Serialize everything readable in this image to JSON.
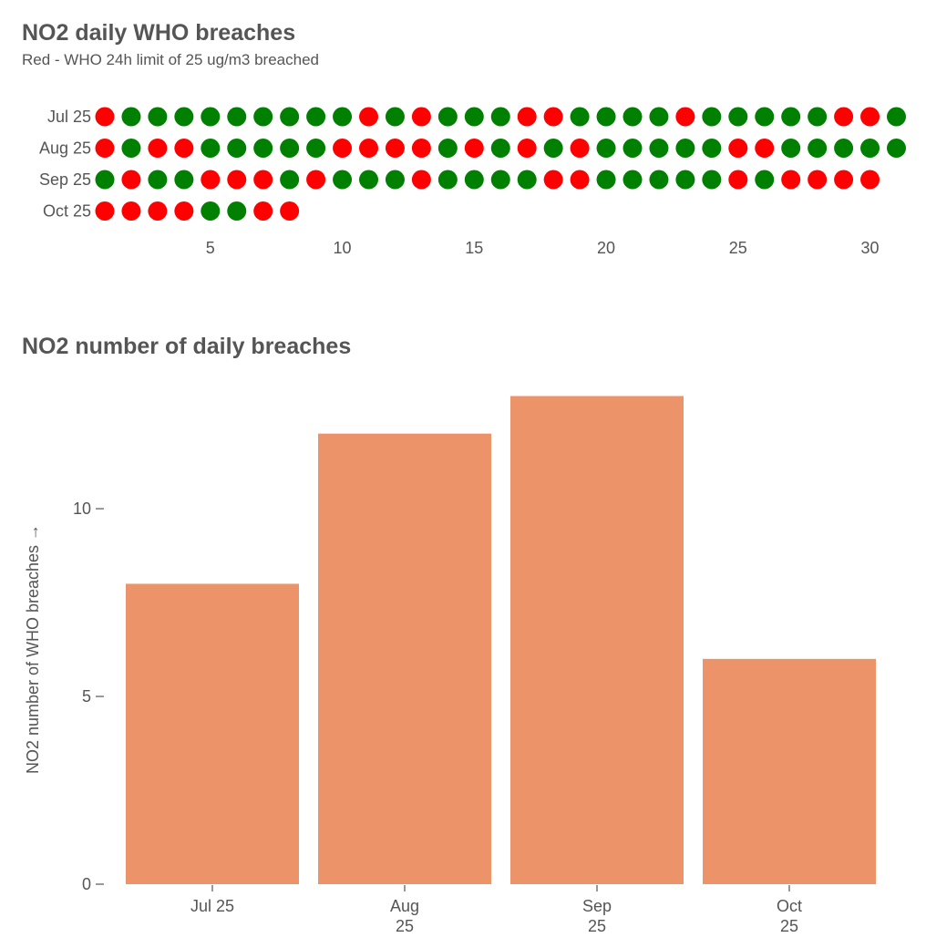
{
  "chart_data": [
    {
      "type": "scatter",
      "title": "NO2 daily WHO breaches",
      "subtitle": "Red - WHO 24h limit of 25 ug/m3 breached",
      "colors": {
        "breach": "#ff0000",
        "ok": "#008000"
      },
      "x_ticks": [
        5,
        10,
        15,
        20,
        25,
        30
      ],
      "x_range": [
        1,
        31
      ],
      "rows": [
        {
          "label": "Jul 25",
          "days": [
            1,
            0,
            0,
            0,
            0,
            0,
            0,
            0,
            0,
            0,
            1,
            0,
            1,
            0,
            0,
            0,
            1,
            1,
            0,
            0,
            0,
            0,
            1,
            0,
            0,
            0,
            0,
            0,
            1,
            1,
            0
          ]
        },
        {
          "label": "Aug 25",
          "days": [
            1,
            0,
            1,
            1,
            0,
            0,
            0,
            0,
            0,
            1,
            1,
            1,
            1,
            0,
            1,
            0,
            1,
            0,
            1,
            0,
            0,
            0,
            0,
            0,
            1,
            1,
            0,
            0,
            0,
            0,
            0
          ]
        },
        {
          "label": "Sep 25",
          "days": [
            0,
            1,
            0,
            0,
            1,
            1,
            1,
            0,
            1,
            0,
            0,
            0,
            1,
            0,
            0,
            0,
            0,
            1,
            1,
            0,
            0,
            0,
            0,
            0,
            1,
            0,
            1,
            1,
            1,
            1
          ]
        },
        {
          "label": "Oct 25",
          "days": [
            1,
            1,
            1,
            1,
            0,
            0,
            1,
            1
          ]
        }
      ]
    },
    {
      "type": "bar",
      "title": "NO2 number of daily breaches",
      "ylabel": "NO2 number of WHO breaches →",
      "categories": [
        [
          "Jul 25"
        ],
        [
          "Aug",
          "25"
        ],
        [
          "Sep",
          "25"
        ],
        [
          "Oct",
          "25"
        ]
      ],
      "values": [
        8,
        12,
        13,
        6
      ],
      "y_ticks": [
        0,
        5,
        10
      ],
      "ylim": [
        0,
        13.4
      ],
      "bar_color": "#ec9369"
    }
  ]
}
